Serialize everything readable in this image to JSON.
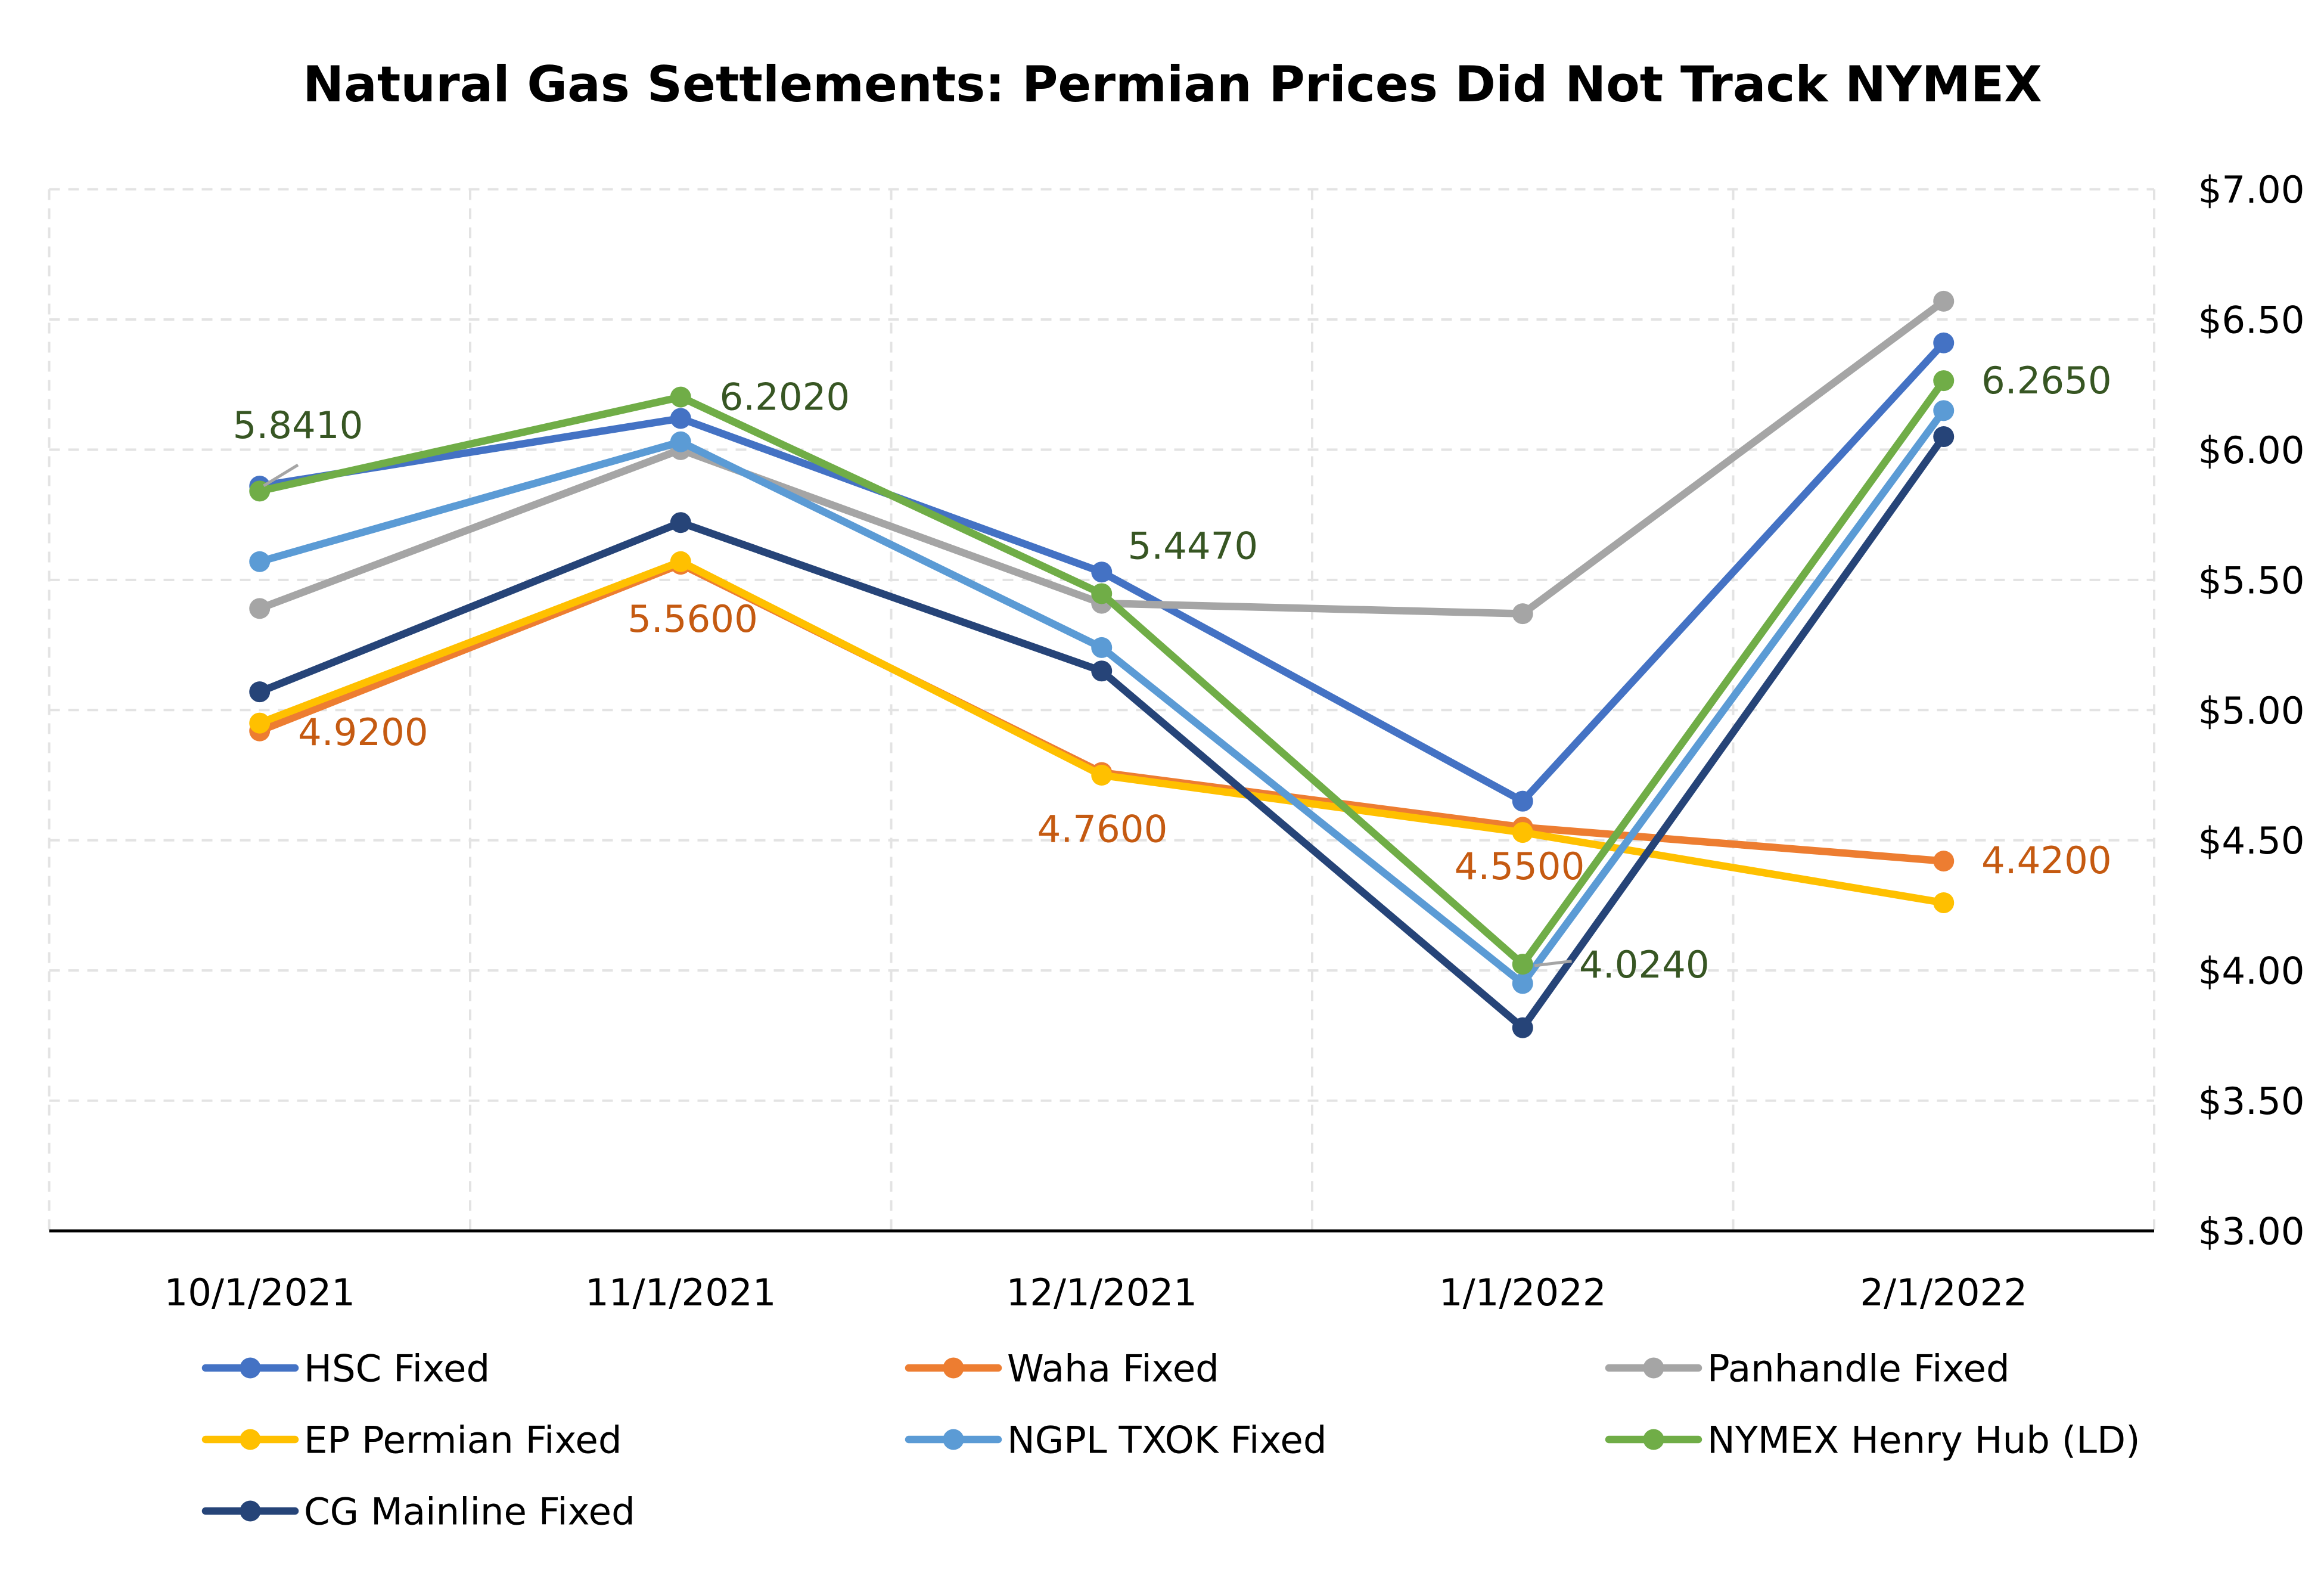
{
  "chart_data": {
    "type": "line",
    "title": "Natural Gas Settlements: Permian Prices Did Not Track NYMEX",
    "categories": [
      "10/1/2021",
      "11/1/2021",
      "12/1/2021",
      "1/1/2022",
      "2/1/2022"
    ],
    "y_axis": {
      "position": "right",
      "min": 3.0,
      "max": 7.0,
      "step": 0.5,
      "tick_labels": [
        "$3.00",
        "$3.50",
        "$4.00",
        "$4.50",
        "$5.00",
        "$5.50",
        "$6.00",
        "$6.50",
        "$7.00"
      ]
    },
    "grid": true,
    "legend_position": "bottom",
    "series": [
      {
        "name": "HSC Fixed",
        "color": "#4472C4",
        "values": [
          5.86,
          6.12,
          5.53,
          4.65,
          6.41
        ]
      },
      {
        "name": "Waha Fixed",
        "color": "#ED7D31",
        "values": [
          4.92,
          5.56,
          4.76,
          4.55,
          4.42
        ],
        "data_labels": [
          "4.9200",
          "5.5600",
          "4.7600",
          "4.5500",
          "4.4200"
        ],
        "label_color": "#C55A11"
      },
      {
        "name": "Panhandle Fixed",
        "color": "#A5A5A5",
        "values": [
          5.39,
          6.0,
          5.41,
          5.37,
          6.57
        ]
      },
      {
        "name": "EP Permian Fixed",
        "color": "#FFC000",
        "values": [
          4.95,
          5.57,
          4.75,
          4.53,
          4.26
        ]
      },
      {
        "name": "NGPL TXOK Fixed",
        "color": "#5B9BD5",
        "values": [
          5.57,
          6.03,
          5.24,
          3.95,
          6.15
        ]
      },
      {
        "name": "NYMEX Henry Hub (LD)",
        "color": "#70AD47",
        "values": [
          5.841,
          6.202,
          5.447,
          4.024,
          6.265
        ],
        "data_labels": [
          "5.8410",
          "6.2020",
          "5.4470",
          "4.0240",
          "6.2650"
        ],
        "label_color": "#375623"
      },
      {
        "name": "CG Mainline Fixed",
        "color": "#264478",
        "values": [
          5.07,
          5.72,
          5.15,
          3.78,
          6.05
        ]
      }
    ]
  }
}
